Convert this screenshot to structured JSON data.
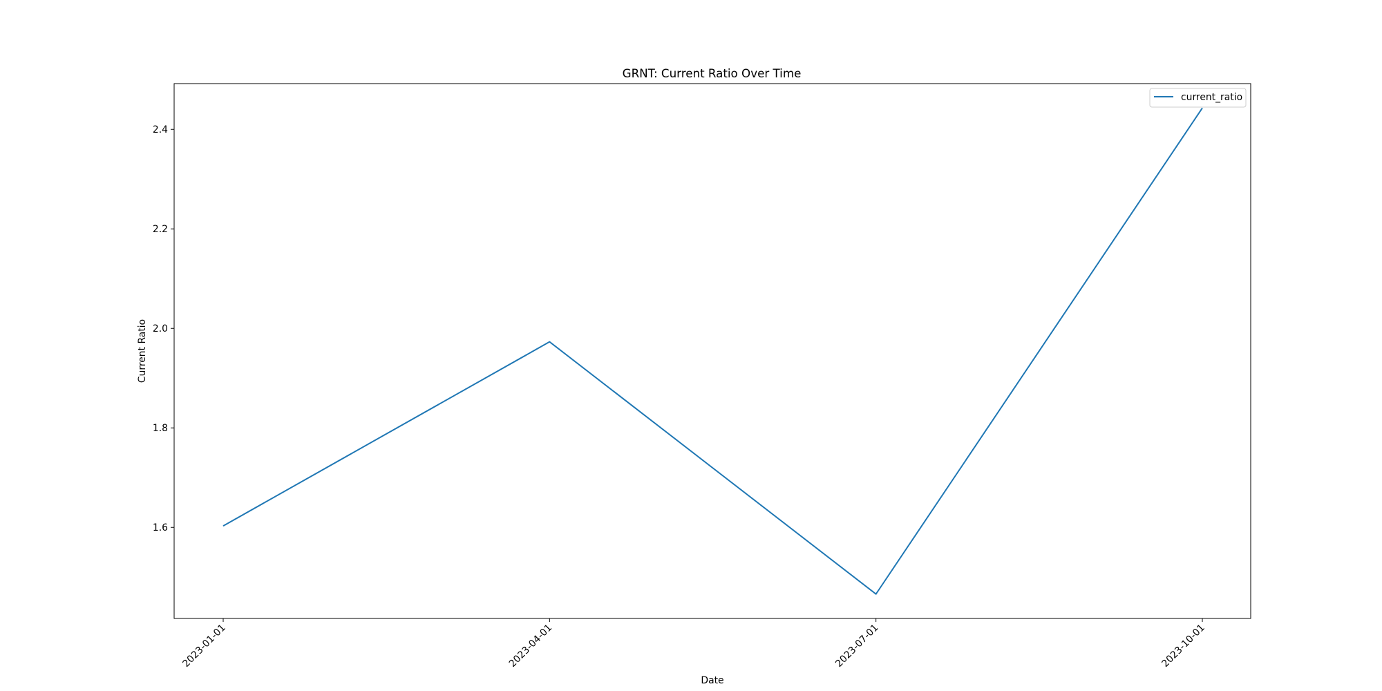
{
  "chart_data": {
    "type": "line",
    "title": "GRNT: Current Ratio Over Time",
    "xlabel": "Date",
    "ylabel": "Current Ratio",
    "x": [
      "2023-01-01",
      "2023-04-01",
      "2023-07-01",
      "2023-10-01"
    ],
    "x_ticks": [
      "2023-01-01",
      "2023-04-01",
      "2023-07-01",
      "2023-10-01"
    ],
    "series": [
      {
        "name": "current_ratio",
        "values": [
          1.603,
          1.973,
          1.466,
          2.443
        ],
        "color": "#1f77b4"
      }
    ],
    "ylim": [
      1.417,
      2.492
    ],
    "y_ticks": [
      "1.6",
      "1.8",
      "2.0",
      "2.2",
      "2.4"
    ],
    "y_tick_values": [
      1.6,
      1.8,
      2.0,
      2.2,
      2.4
    ],
    "legend_position": "top-right",
    "grid": false
  }
}
